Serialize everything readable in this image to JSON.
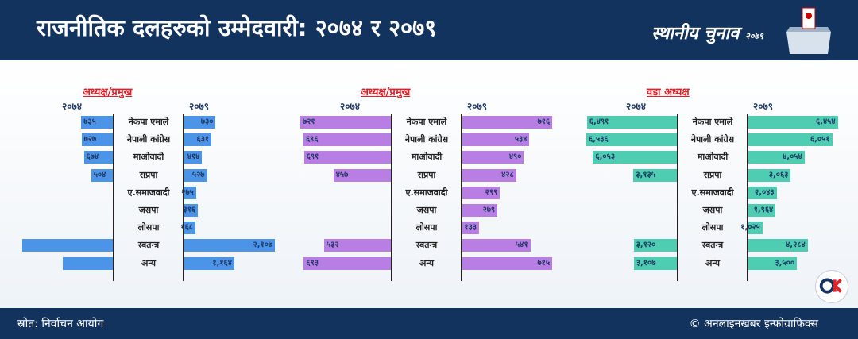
{
  "header": {
    "title": "राजनीतिक दलहरुको उम्मेदवारी: २०७४ र २०७९",
    "brand": "स्थानीय चुनाव",
    "brand_year": "२०७९"
  },
  "footer": {
    "source": "स्रोत: निर्वाचन आयोग",
    "credit": "© अनलाइनखबर इन्फोग्राफिक्स"
  },
  "logo_icon": "onlinekhabar-logo",
  "colors": {
    "header_bg": "#12335e",
    "title_red": "#e31e24",
    "series_blue": "#4b94e8",
    "series_purple": "#b87ee4",
    "series_teal": "#4fcdb3"
  },
  "chart_data": [
    {
      "type": "bar",
      "title": "अध्यक्ष/प्रमुख",
      "series": [
        {
          "name": "२०७४",
          "labels": [
            "७३५",
            "७२७",
            "६७४",
            "५०४",
            "",
            "",
            "",
            "",
            ""
          ],
          "values": [
            735,
            727,
            674,
            504,
            0,
            0,
            0,
            2107,
            1164
          ]
        },
        {
          "name": "२०७९",
          "labels": [
            "७३०",
            "६३१",
            "४१४",
            "५२७",
            "२७५",
            "३१६",
            "१६८",
            "२,१०७",
            "१,१६४"
          ],
          "values": [
            730,
            631,
            414,
            527,
            275,
            316,
            168,
            2107,
            1164
          ]
        }
      ],
      "categories": [
        "नेकपा एमाले",
        "नेपाली कांग्रेस",
        "माओवादी",
        "राप्रपा",
        "ए.समाजवादी",
        "जसपा",
        "लोसपा",
        "स्वतन्त्र",
        "अन्य"
      ],
      "xlim": [
        0,
        2107
      ]
    },
    {
      "type": "bar",
      "title": "अध्यक्ष/प्रमुख",
      "series": [
        {
          "name": "२०७४",
          "labels": [
            "७२१",
            "६९६",
            "६९१",
            "४५७",
            "",
            "",
            "",
            "५३२",
            "६९३"
          ],
          "values": [
            721,
            696,
            691,
            457,
            0,
            0,
            0,
            532,
            693
          ]
        },
        {
          "name": "२०७९",
          "labels": [
            "७१६",
            "५३४",
            "४९०",
            "४२८",
            "२९९",
            "२७९",
            "१३३",
            "५४१",
            "७१५"
          ],
          "values": [
            716,
            534,
            490,
            428,
            299,
            279,
            133,
            541,
            715
          ]
        }
      ],
      "categories": [
        "नेकपा एमाले",
        "नेपाली कांग्रेस",
        "माओवादी",
        "राप्रपा",
        "ए.समाजवादी",
        "जसपा",
        "लोसपा",
        "स्वतन्त्र",
        "अन्य"
      ],
      "xlim": [
        0,
        721
      ]
    },
    {
      "type": "bar",
      "title": "वडा अध्यक्ष",
      "series": [
        {
          "name": "२०७४",
          "labels": [
            "६,४९१",
            "६,५३६",
            "६,०५३",
            "३,१३५",
            "",
            "",
            "",
            "३,१२०",
            "३,१०७"
          ],
          "values": [
            6491,
            6536,
            6053,
            3135,
            0,
            0,
            0,
            3120,
            3107
          ]
        },
        {
          "name": "२०७९",
          "labels": [
            "६,४५४",
            "६,०५१",
            "४,०५४",
            "३,०६३",
            "२,०४३",
            "१,९६४",
            "१,०२५",
            "४,२८४",
            "३,५००"
          ],
          "values": [
            6454,
            6051,
            4054,
            3063,
            2043,
            1964,
            1025,
            4284,
            3500
          ]
        }
      ],
      "categories": [
        "नेकपा एमाले",
        "नेपाली कांग्रेस",
        "माओवादी",
        "राप्रपा",
        "ए.समाजवादी",
        "जसपा",
        "लोसपा",
        "स्वतन्त्र",
        "अन्य"
      ],
      "xlim": [
        0,
        6536
      ]
    }
  ]
}
